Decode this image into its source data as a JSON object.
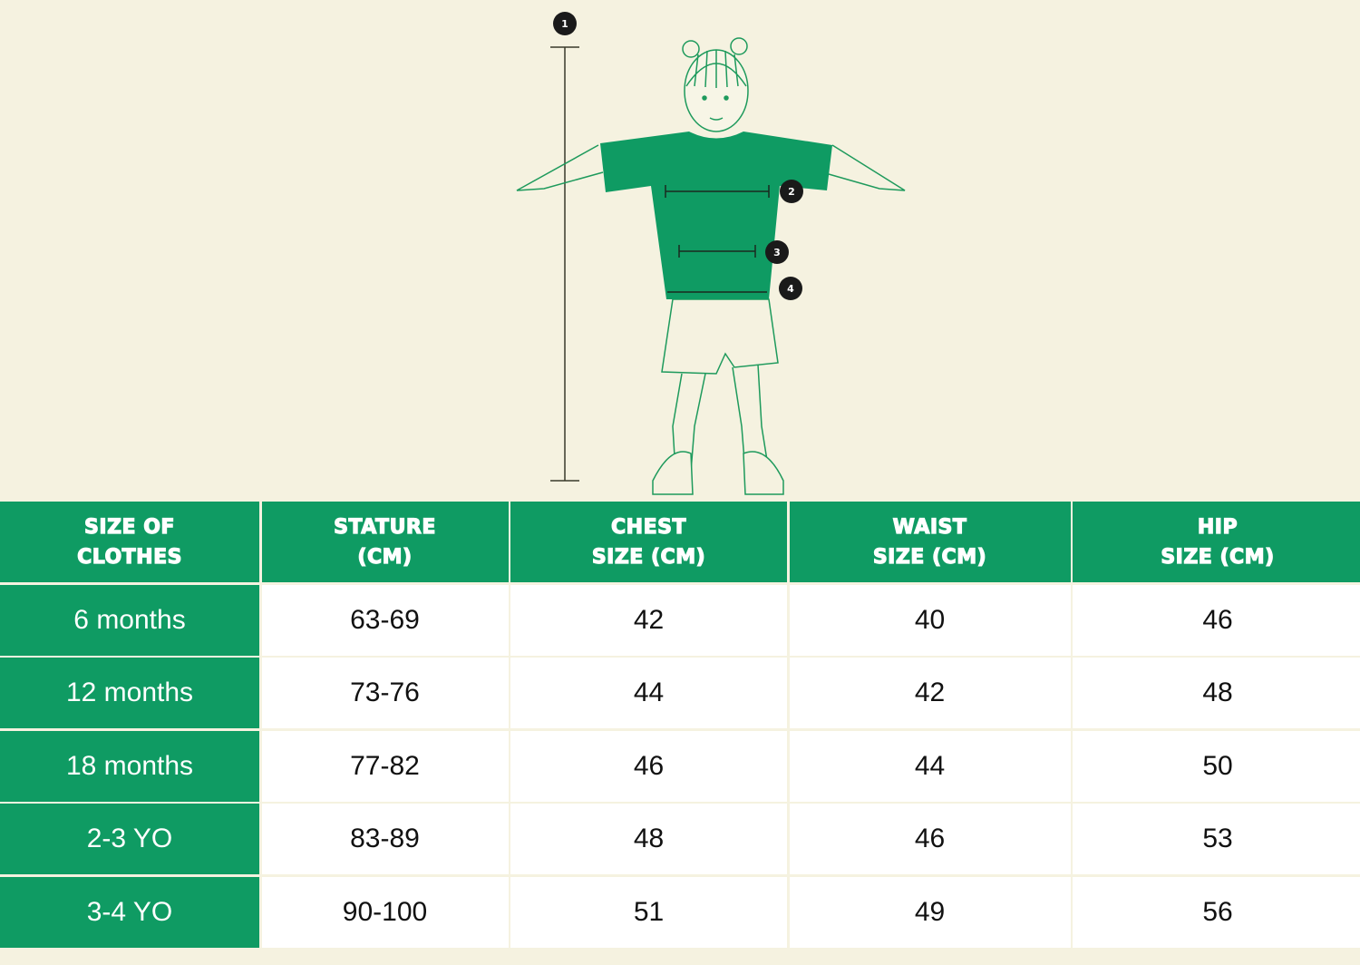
{
  "colors": {
    "background": "#f5f2e0",
    "accent": "#0f9b63",
    "marker": "#1a1a1a"
  },
  "figure": {
    "markers": [
      "1",
      "2",
      "3",
      "4"
    ]
  },
  "table": {
    "headers": [
      "SIZE OF\nCLOTHES",
      "STATURE\n(CM)",
      "CHEST\nSIZE (CM)",
      "WAIST\nSIZE (CM)",
      "HIP\nSIZE (CM)"
    ],
    "rows": [
      [
        "6 months",
        "63-69",
        "42",
        "40",
        "46"
      ],
      [
        "12 months",
        "73-76",
        "44",
        "42",
        "48"
      ],
      [
        "18 months",
        "77-82",
        "46",
        "44",
        "50"
      ],
      [
        "2-3 YO",
        "83-89",
        "48",
        "46",
        "53"
      ],
      [
        "3-4 YO",
        "90-100",
        "51",
        "49",
        "56"
      ]
    ]
  }
}
